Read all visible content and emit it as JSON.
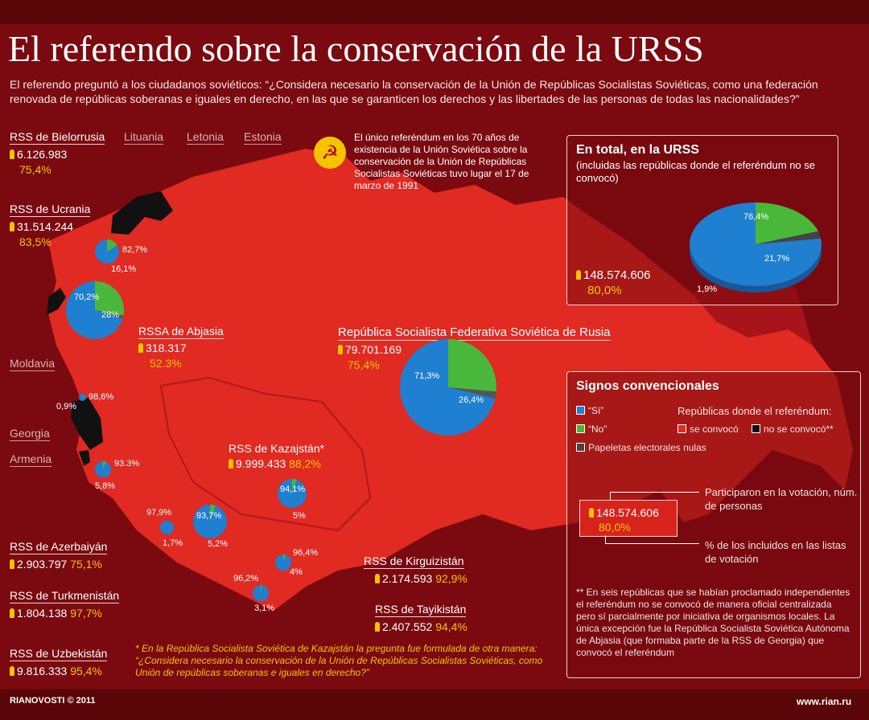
{
  "title": "El referendo sobre la conservación de la URSS",
  "intro": "El referendo preguntó a los ciudadanos soviéticos: “¿Considera necesario la conservación de la Unión de Repúblicas Socialistas Soviéticas, como una federación renovada de repúblicas soberanas e iguales en derecho, en las que se garanticen los derechos y las libertades de las personas de todas las nacionalidades?”",
  "info_text": "El único referéndum en los 70 años de existencia de la Unión Soviética sobre la conservación de la Unión de Repúblicas Socialistas Soviéticas tuvo lugar el 17 de marzo de 1991",
  "gray_labels": {
    "lituania": "Lituania",
    "letonia": "Letonia",
    "estonia": "Estonia",
    "moldavia": "Moldavia",
    "georgia": "Georgia",
    "armenia": "Armenia"
  },
  "republics": {
    "bielorrusia": {
      "name": "RSS de Bielorrusia",
      "voters": "6.126.983",
      "pct": "75,4%",
      "yes": "82,7%",
      "no": "16,1%"
    },
    "ucrania": {
      "name": "RSS de Ucrania",
      "voters": "31.514.244",
      "pct": "83,5%",
      "yes": "70,2%",
      "no": "28%"
    },
    "abjasia": {
      "name": "RSSA de Abjasia",
      "voters": "318.317",
      "pct": "52.3%",
      "yes": "98,6%",
      "no": "0,9%"
    },
    "rusia": {
      "name": "República Socialista Federativa Soviética de Rusia",
      "voters": "79.701.169",
      "pct": "75,4%",
      "yes": "71,3%",
      "no": "26,4%"
    },
    "kazajstan": {
      "name": "RSS de Kazajstán*",
      "voters": "9.999.433",
      "pct": "88,2%",
      "yes": "94,1%",
      "no": "5%"
    },
    "azerbaiyan": {
      "name": "RSS de Azerbaiyán",
      "voters": "2.903.797",
      "pct": "75,1%",
      "yes": "93.3%",
      "no": "5,8%"
    },
    "turkmenistan": {
      "name": "RSS de Turkmenistán",
      "voters": "1.804.138",
      "pct": "97,7%",
      "yes": "97,9%",
      "no": "1,7%"
    },
    "uzbekistan": {
      "name": "RSS de Uzbekistán",
      "voters": "9.816.333",
      "pct": "95,4%",
      "yes": "93,7%",
      "no": "5,2%"
    },
    "kirguizistan": {
      "name": "RSS de Kirguizistán",
      "voters": "2.174.593",
      "pct": "92,9%",
      "yes": "96,4%",
      "no": "4%"
    },
    "tayikistan": {
      "name": "RSS de Tayikistán",
      "voters": "2.407.552",
      "pct": "94,4%",
      "yes": "96,2%",
      "no": "3,1%"
    }
  },
  "total": {
    "title": "En total, en la URSS",
    "subtitle": "(incluidas las repúblicas donde el referéndum no se convocó)",
    "voters": "148.574.606",
    "pct": "80,0%",
    "yes": "76,4%",
    "no": "21,7%",
    "void": "1,9%",
    "yes_value": 76.4,
    "no_value": 21.7,
    "void_value": 1.9
  },
  "legend": {
    "title": "Signos convencionales",
    "yes": "“Sí”",
    "no": "“No”",
    "void": "Papeletas electorales nulas",
    "republics_label": "Repúblicas donde el referéndum:",
    "convoked": "se convocó",
    "not_convoked": "no se convocó**",
    "participants": "Participaron en la votación, núm. de personas",
    "sample_voters": "148.574.606",
    "sample_pct": "80,0%",
    "pct_note": "% de los incluidos en las listas de votación",
    "footnote": "** En seis repúblicas que se habían proclamado independientes el referéndum no se convocó de manera oficial centralizada pero sí parcialmente por iniciativa de organismos locales. La única excepción fue la República Socialista Soviética Autónoma de Abjasia (que formaba parte de la RSS de Georgia) que convocó el referéndum"
  },
  "kazakh_note": "* En la República Socialista Soviética de Kazajstán la pregunta fue formulada de otra manera: “¿Considera necesario la conservación de la Unión de Repúblicas Socialistas Soviéticas, como Unión de repúblicas soberanas e iguales en derecho?”",
  "footer_left": "RIANOVOSTI © 2011",
  "footer_right": "www.rian.ru",
  "colors": {
    "yes": "#1f7fd0",
    "no": "#49b83a",
    "map": "#e02a22",
    "background": "#7a0a10"
  }
}
